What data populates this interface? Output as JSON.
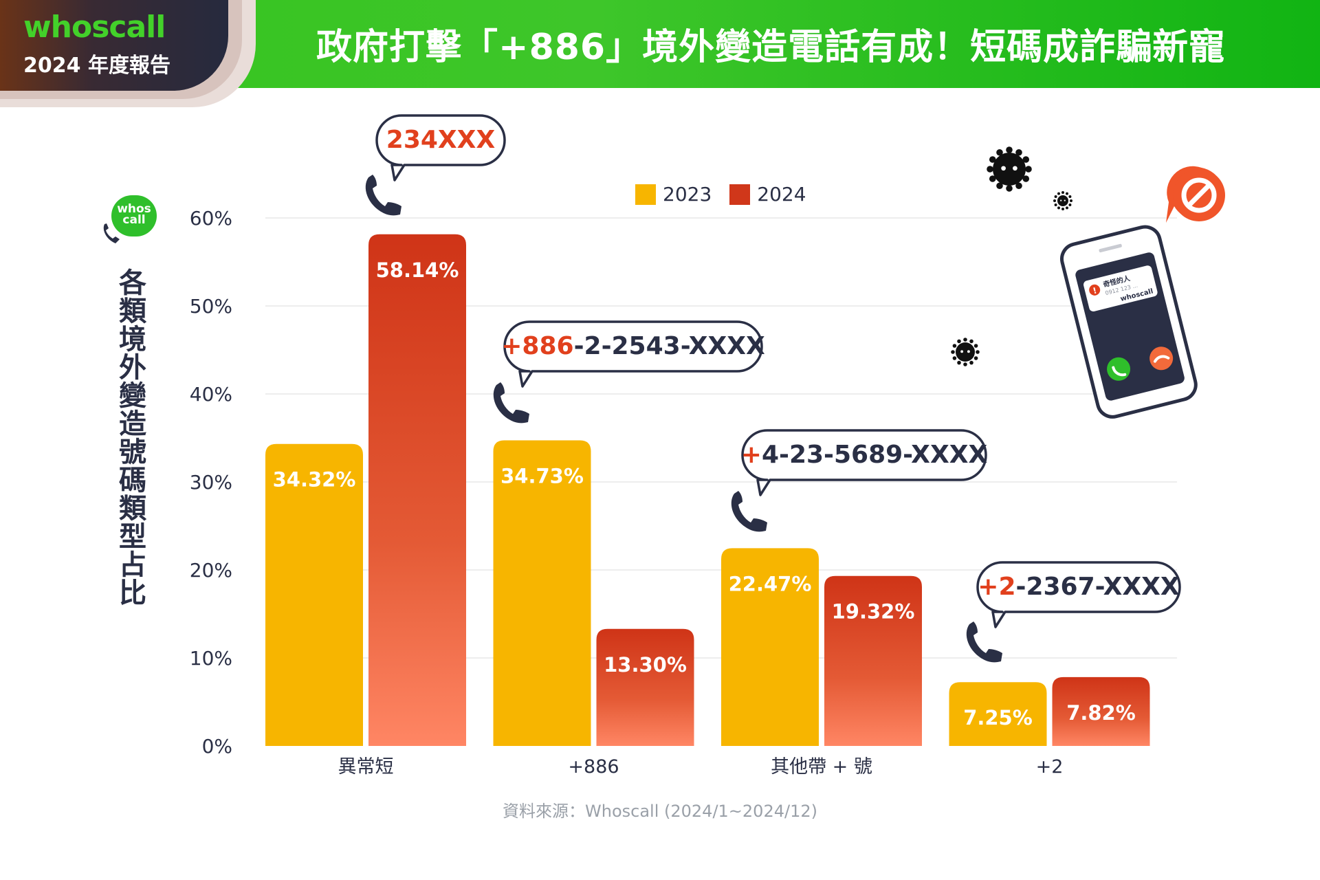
{
  "header": {
    "brand_name": "whoscall",
    "report_label": "2024 年度報告",
    "title": "政府打擊「+886」境外變造電話有成！短碼成詐騙新寵"
  },
  "logo_text": "whos call",
  "y_title": "各類境外變造號碼類型占比",
  "source": "資料來源：Whoscall (2024/1~2024/12)",
  "colors": {
    "y2023": "#f7b500",
    "y2024": "#d0371a",
    "accent": "#e1401d",
    "dark": "#2a2f45"
  },
  "chart_data": {
    "type": "bar",
    "categories": [
      "異常短",
      "+886",
      "其他帶 + 號",
      "+2"
    ],
    "series": [
      {
        "name": "2023",
        "values": [
          34.32,
          34.73,
          22.47,
          7.25
        ],
        "labels": [
          "34.32%",
          "34.73%",
          "22.47%",
          "7.25%"
        ]
      },
      {
        "name": "2024",
        "values": [
          58.14,
          13.3,
          19.32,
          7.82
        ],
        "labels": [
          "58.14%",
          "13.30%",
          "19.32%",
          "7.82%"
        ]
      }
    ],
    "ylim": [
      0,
      60
    ],
    "yticks": [
      0,
      10,
      20,
      30,
      40,
      50,
      60
    ],
    "ytick_labels": [
      "0%",
      "10%",
      "20%",
      "30%",
      "40%",
      "50%",
      "60%"
    ],
    "grid": true,
    "legend": "top-center",
    "annotations": [
      {
        "category": "異常短",
        "prefix": "",
        "rest": "234XXX",
        "all_accent": true
      },
      {
        "category": "+886",
        "prefix": "+886",
        "rest": "-2-2543-XXXX",
        "all_accent": false
      },
      {
        "category": "其他帶 + 號",
        "prefix": "+",
        "rest": "4-23-5689-XXXX",
        "all_accent": false
      },
      {
        "category": "+2",
        "prefix": "+2",
        "rest": "-2367-XXXX",
        "all_accent": false
      }
    ]
  },
  "phone_card": {
    "caller": "奇怪的人",
    "number": "0912 123 ...",
    "brand": "whoscall"
  }
}
